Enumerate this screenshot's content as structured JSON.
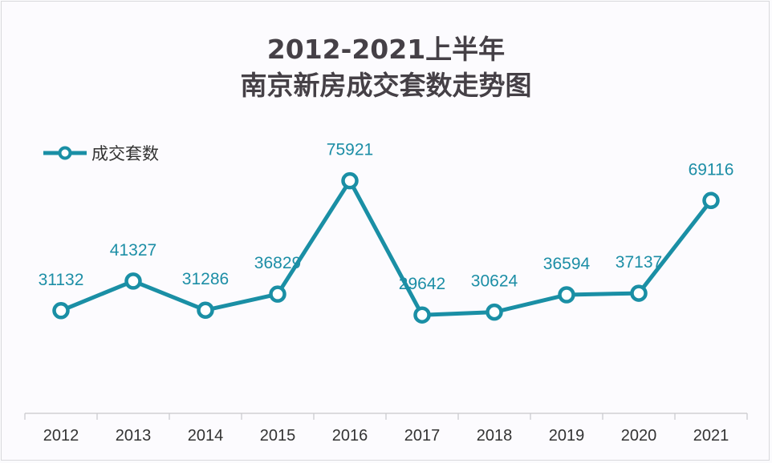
{
  "chart": {
    "title_line1": "2012-2021上半年",
    "title_line2": "南京新房成交套数走势图",
    "legend_label": "成交套数",
    "line_color": "#1a8fa5"
  },
  "chart_data": {
    "type": "line",
    "title": "2012-2021上半年 南京新房成交套数走势图",
    "categories": [
      "2012",
      "2013",
      "2014",
      "2015",
      "2016",
      "2017",
      "2018",
      "2019",
      "2020",
      "2021"
    ],
    "series": [
      {
        "name": "成交套数",
        "values": [
          31132,
          41327,
          31286,
          36829,
          75921,
          29642,
          30624,
          36594,
          37137,
          69116
        ]
      }
    ],
    "labels": [
      "31132",
      "41327",
      "31286",
      "36829",
      "75921",
      "29642",
      "30624",
      "36594",
      "37137",
      "69116"
    ],
    "xlabel": "",
    "ylabel": "",
    "grid": false,
    "legend_position": "top-left",
    "data_labels": true
  }
}
